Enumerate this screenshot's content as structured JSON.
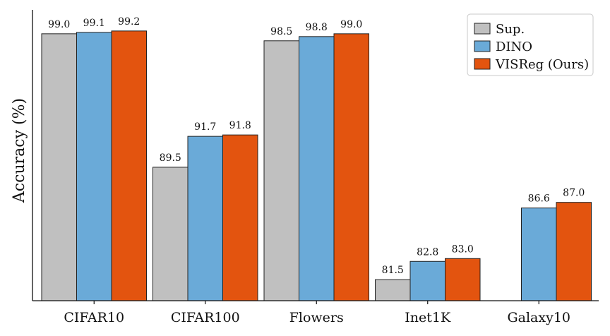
{
  "chart_data": {
    "type": "bar",
    "title": "",
    "xlabel": "",
    "ylabel": "Accuracy (%)",
    "categories": [
      "CIFAR10",
      "CIFAR100",
      "Flowers",
      "Inet1K",
      "Galaxy10"
    ],
    "series": [
      {
        "name": "Sup.",
        "color": "#c0c0c0",
        "values": [
          99.0,
          89.5,
          98.5,
          81.5,
          null
        ]
      },
      {
        "name": "DINO",
        "color": "#6aaad8",
        "values": [
          99.1,
          91.7,
          98.8,
          82.8,
          86.6
        ]
      },
      {
        "name": "VISReg (Ours)",
        "color": "#e3540f",
        "values": [
          99.2,
          91.8,
          99.0,
          83.0,
          87.0
        ]
      }
    ],
    "data_labels": [
      [
        "99.0",
        "89.5",
        "98.5",
        "81.5",
        ""
      ],
      [
        "99.1",
        "91.7",
        "98.8",
        "82.8",
        "86.6"
      ],
      [
        "99.2",
        "91.8",
        "99.0",
        "83.0",
        "87.0"
      ]
    ],
    "ylim": [
      80.0,
      100.7
    ],
    "grid": false,
    "y_ticks_shown": false,
    "legend_position": "top-right"
  }
}
